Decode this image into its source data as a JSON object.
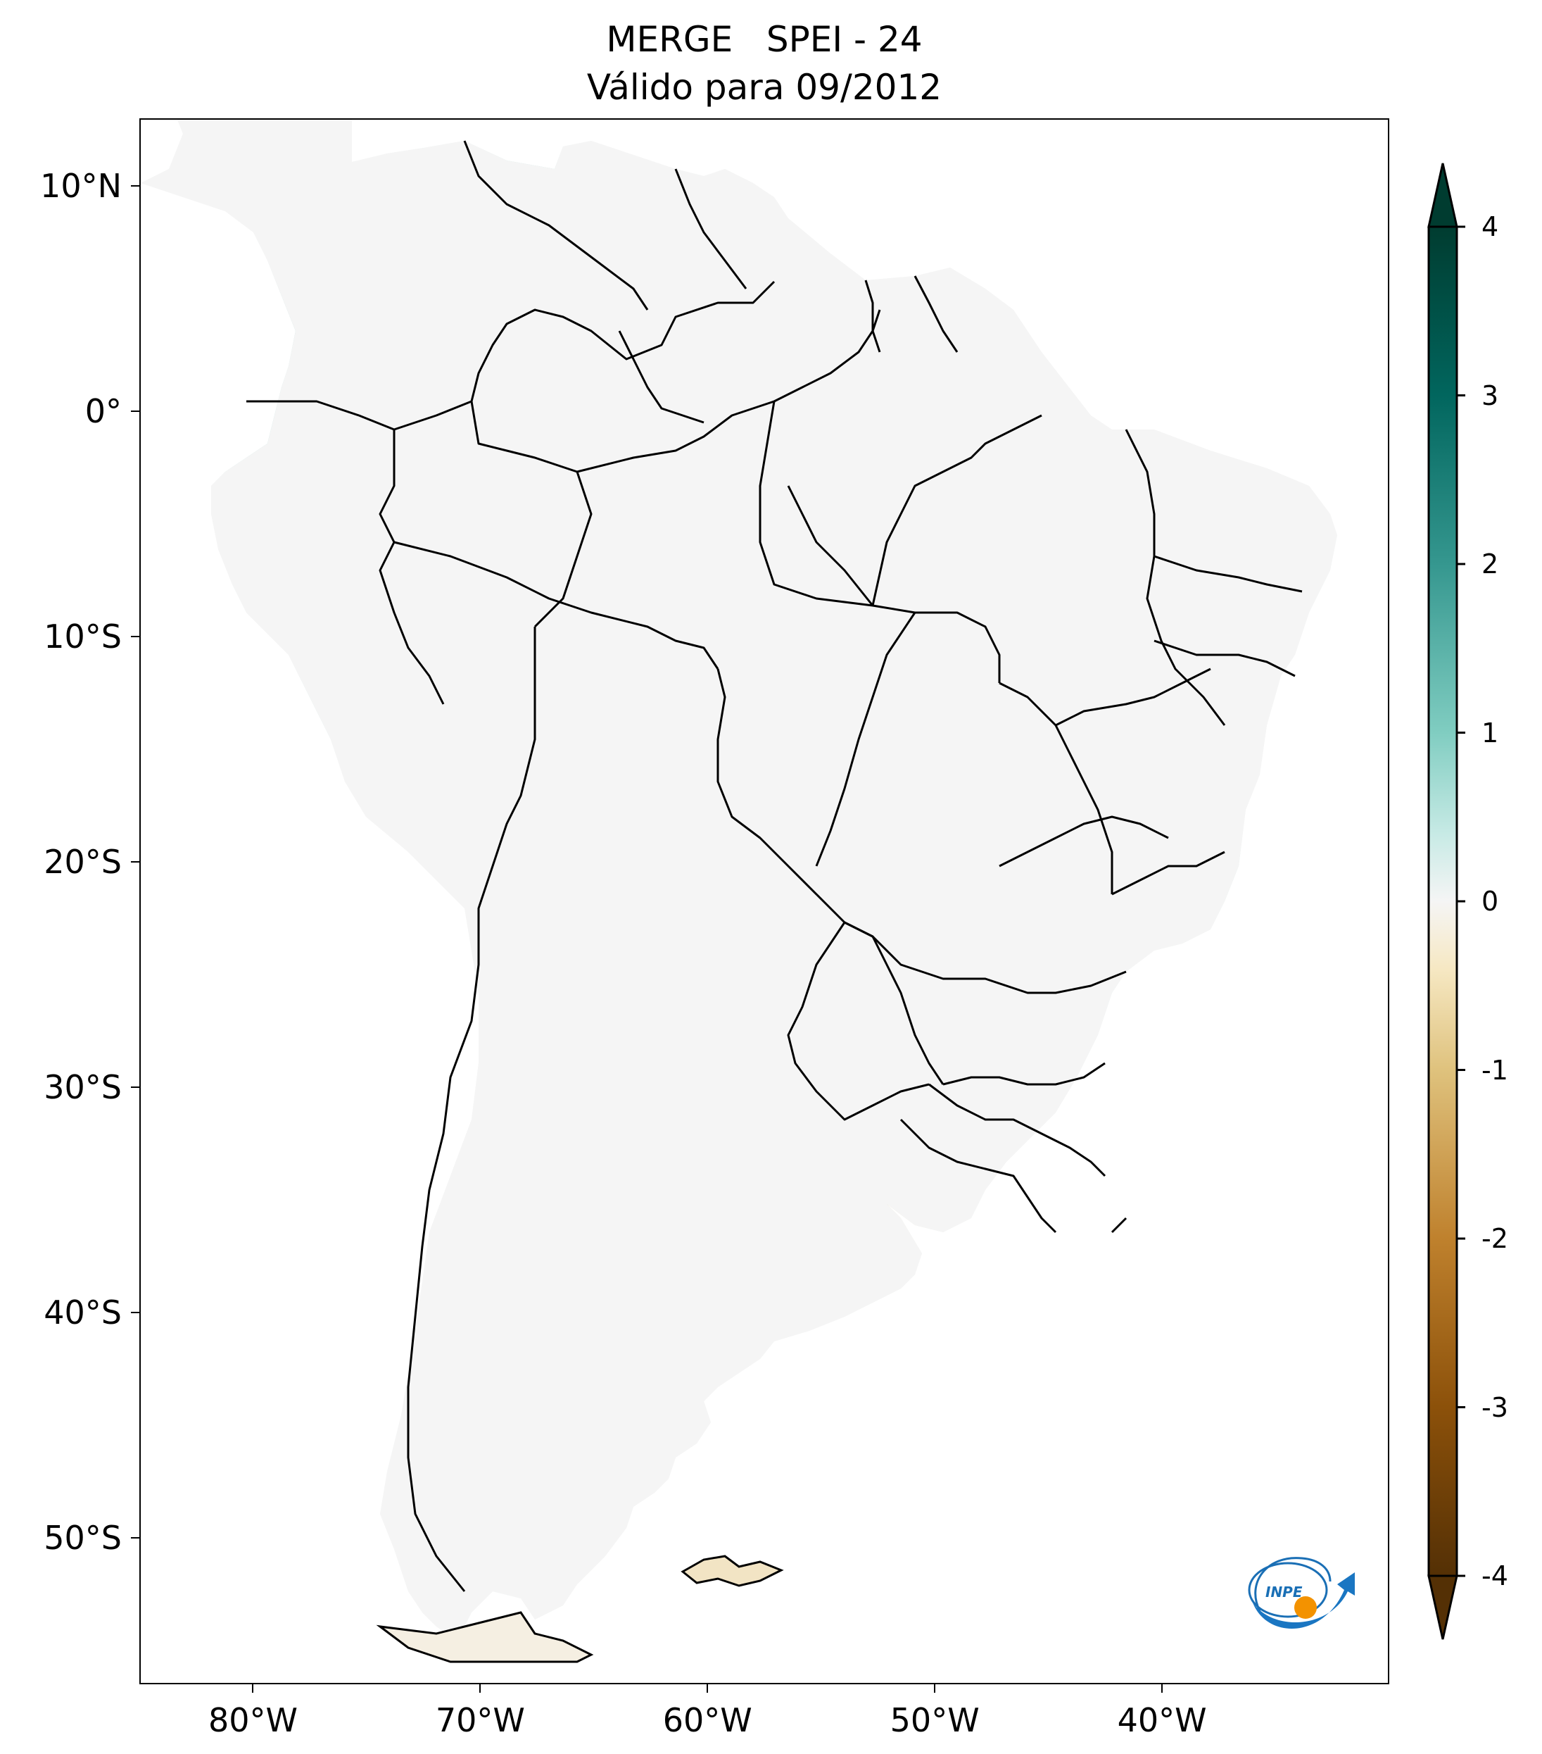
{
  "title": {
    "line1": "MERGE   SPEI - 24",
    "line2": "Válido para 09/2012"
  },
  "axes": {
    "lat_labels": [
      "10°N",
      "0°",
      "10°S",
      "20°S",
      "30°S",
      "40°S",
      "50°S"
    ],
    "lat_values": [
      10,
      0,
      -10,
      -20,
      -30,
      -40,
      -50
    ],
    "lon_labels": [
      "80°W",
      "70°W",
      "60°W",
      "50°W",
      "40°W"
    ],
    "lon_values": [
      -80,
      -70,
      -60,
      -50,
      -40
    ],
    "lon_range": [
      -85,
      -30
    ],
    "lat_range": [
      -56.5,
      13
    ]
  },
  "colorbar": {
    "ticks": [
      "4",
      "3",
      "2",
      "1",
      "0",
      "-1",
      "-2",
      "-3",
      "-4"
    ],
    "range": [
      -4,
      4
    ],
    "extend": "both",
    "colormap": "BrBG",
    "colors": {
      "neg4": "#543005",
      "neg3": "#8c510a",
      "neg2": "#bf812d",
      "neg1": "#dfc27d",
      "neg05": "#f6e8c3",
      "zero": "#f5f5f5",
      "pos05": "#c7eae5",
      "pos1": "#80cdc1",
      "pos2": "#35978f",
      "pos3": "#01665e",
      "pos4": "#003c30"
    }
  },
  "logo": {
    "text": "INPE",
    "icon": "inpe-logo-icon"
  }
}
